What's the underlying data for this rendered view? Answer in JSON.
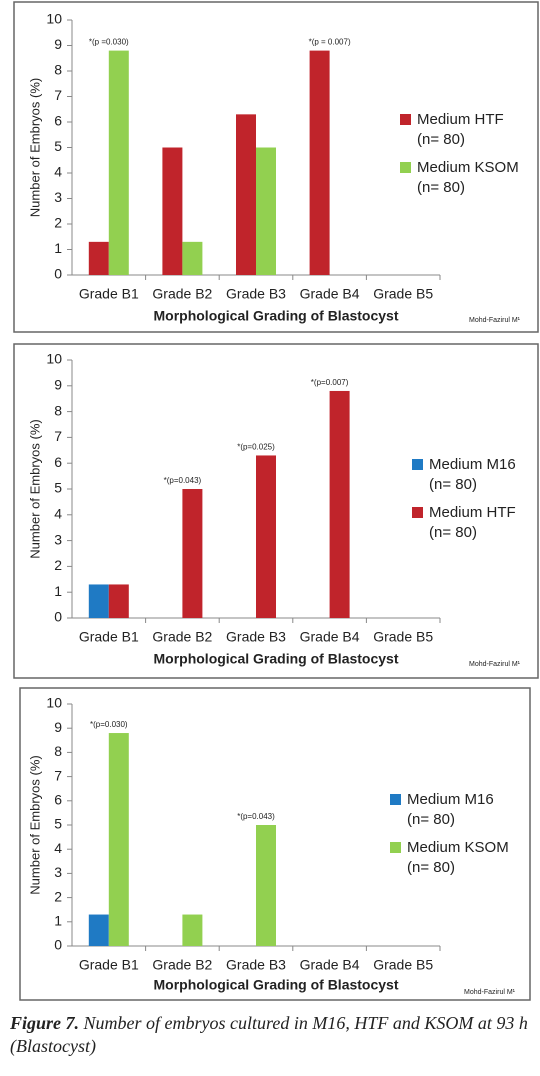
{
  "chart_data": [
    {
      "type": "bar",
      "y_label": "Number of Embryos (%)",
      "x_label": "Morphological Grading of Blastocyst",
      "credit": "Mohd-Fazirul M¹",
      "categories": [
        "Grade B1",
        "Grade B2",
        "Grade B3",
        "Grade B4",
        "Grade B5"
      ],
      "series": [
        {
          "name": "Medium HTF",
          "sample": "(n= 80)",
          "color": "#c0242b",
          "values": [
            1.3,
            5.0,
            6.3,
            8.8,
            0
          ]
        },
        {
          "name": "Medium KSOM",
          "sample": "(n= 80)",
          "color": "#92d050",
          "values": [
            8.8,
            1.3,
            5.0,
            0,
            0
          ]
        }
      ],
      "annotations": [
        "*(p =0.030)",
        null,
        null,
        "*(p = 0.007)",
        null
      ],
      "ylim": [
        0,
        10
      ],
      "yticks": [
        0,
        1,
        2,
        3,
        4,
        5,
        6,
        7,
        8,
        9,
        10
      ]
    },
    {
      "type": "bar",
      "y_label": "Number of Embryos (%)",
      "x_label": "Morphological Grading of Blastocyst",
      "credit": "Mohd-Fazirul M¹",
      "categories": [
        "Grade B1",
        "Grade B2",
        "Grade B3",
        "Grade B4",
        "Grade B5"
      ],
      "series": [
        {
          "name": "Medium M16",
          "sample": "(n= 80)",
          "color": "#1f7ac4",
          "values": [
            1.3,
            0,
            0,
            0,
            0
          ]
        },
        {
          "name": "Medium HTF",
          "sample": "(n= 80)",
          "color": "#c0242b",
          "values": [
            1.3,
            5.0,
            6.3,
            8.8,
            0
          ]
        }
      ],
      "annotations": [
        null,
        "*(p=0.043)",
        "*(p=0.025)",
        "*(p=0.007)",
        null
      ],
      "ylim": [
        0,
        10
      ],
      "yticks": [
        0,
        1,
        2,
        3,
        4,
        5,
        6,
        7,
        8,
        9,
        10
      ]
    },
    {
      "type": "bar",
      "y_label": "Number of Embryos (%)",
      "x_label": "Morphological Grading of Blastocyst",
      "credit": "Mohd-Fazirul M¹",
      "categories": [
        "Grade B1",
        "Grade B2",
        "Grade B3",
        "Grade B4",
        "Grade B5"
      ],
      "series": [
        {
          "name": "Medium M16",
          "sample": "(n= 80)",
          "color": "#1f7ac4",
          "values": [
            1.3,
            0,
            0,
            0,
            0
          ]
        },
        {
          "name": "Medium KSOM",
          "sample": "(n= 80)",
          "color": "#92d050",
          "values": [
            8.8,
            1.3,
            5.0,
            0,
            0
          ]
        }
      ],
      "annotations": [
        "*(p=0.030)",
        null,
        "*(p=0.043)",
        null,
        null
      ],
      "ylim": [
        0,
        10
      ],
      "yticks": [
        0,
        1,
        2,
        3,
        4,
        5,
        6,
        7,
        8,
        9,
        10
      ]
    }
  ],
  "caption": {
    "label": "Figure 7.",
    "text": "Number of embryos cultured in M16, HTF and KSOM at 93 h (Blastocyst)"
  }
}
